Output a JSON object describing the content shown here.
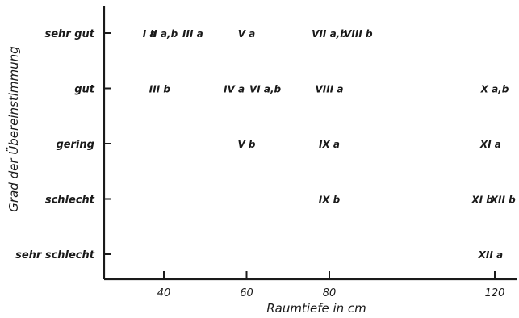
{
  "chart_data": {
    "type": "scatter",
    "xlabel": "Raumtiefe in cm",
    "ylabel": "Grad der Übereinstimmung",
    "x_ticks": [
      40,
      60,
      80,
      120
    ],
    "xlim": [
      35,
      122
    ],
    "y_categories": [
      "sehr gut",
      "gut",
      "gering",
      "schlecht",
      "sehr schlecht"
    ],
    "grid": false,
    "points": [
      {
        "label": "I a",
        "x": 36.5,
        "y": "sehr gut"
      },
      {
        "label": "II a,b",
        "x": 40,
        "y": "sehr gut"
      },
      {
        "label": "III a",
        "x": 47,
        "y": "sehr gut"
      },
      {
        "label": "V a",
        "x": 60,
        "y": "sehr gut"
      },
      {
        "label": "VII a,b",
        "x": 80,
        "y": "sehr gut"
      },
      {
        "label": "VIII b",
        "x": 87,
        "y": "sehr gut"
      },
      {
        "label": "III b",
        "x": 39,
        "y": "gut"
      },
      {
        "label": "IV a",
        "x": 57,
        "y": "gut"
      },
      {
        "label": "VI a,b",
        "x": 64.5,
        "y": "gut"
      },
      {
        "label": "VIII a",
        "x": 80,
        "y": "gut"
      },
      {
        "label": "X a,b",
        "x": 120,
        "y": "gut"
      },
      {
        "label": "V b",
        "x": 60,
        "y": "gering"
      },
      {
        "label": "IX a",
        "x": 80,
        "y": "gering"
      },
      {
        "label": "XI a",
        "x": 119,
        "y": "gering"
      },
      {
        "label": "IX b",
        "x": 80,
        "y": "schlecht"
      },
      {
        "label": "XI b",
        "x": 117,
        "y": "schlecht"
      },
      {
        "label": "XII b",
        "x": 122,
        "y": "schlecht"
      },
      {
        "label": "XII a",
        "x": 119,
        "y": "sehr schlecht"
      }
    ]
  }
}
